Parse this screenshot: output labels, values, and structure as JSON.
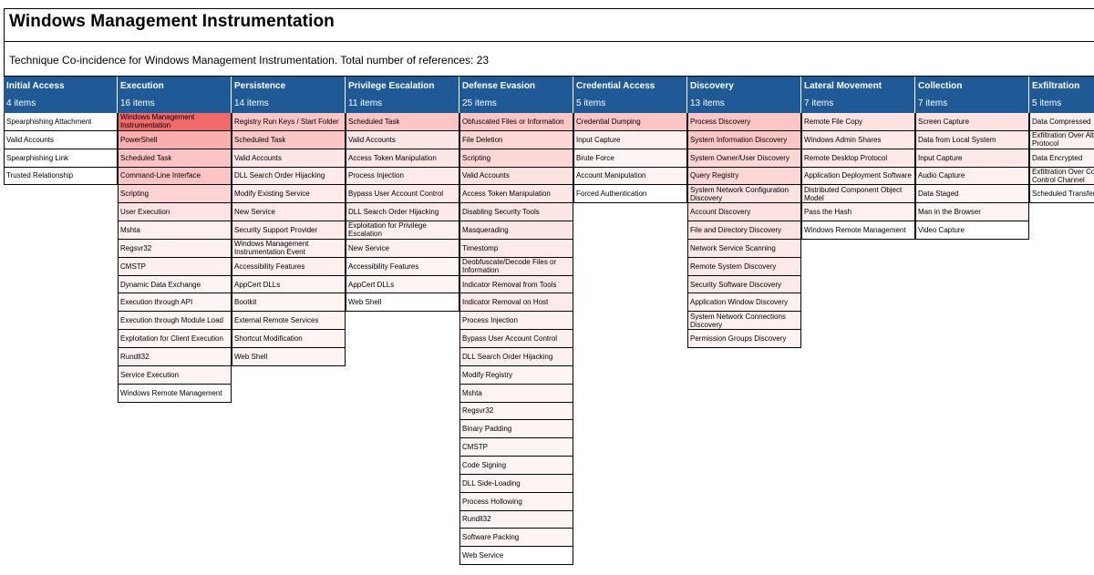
{
  "title": "Windows Management Instrumentation",
  "subtitle": "Technique Co-incidence for Windows Management Instrumentation. Total number of references: 23",
  "colors": {
    "header_bg": "#1f5a96",
    "header_text": "#ffffff"
  },
  "tactics": [
    {
      "name": "Initial Access",
      "count": "4 items",
      "techniques": [
        {
          "label": "Spearphishing Attachment",
          "color": "#ffffff"
        },
        {
          "label": "Valid Accounts",
          "color": "#ffffff"
        },
        {
          "label": "Spearphishing Link",
          "color": "#ffffff"
        },
        {
          "label": "Trusted Relationship",
          "color": "#ffffff"
        }
      ]
    },
    {
      "name": "Execution",
      "count": "16 items",
      "techniques": [
        {
          "label": "Windows Management Instrumentation",
          "color": "#f26b6b"
        },
        {
          "label": "PowerShell",
          "color": "#fbaeae"
        },
        {
          "label": "Scheduled Task",
          "color": "#fcc4c4"
        },
        {
          "label": "Command-Line Interface",
          "color": "#fcc4c4"
        },
        {
          "label": "Scripting",
          "color": "#fdd3d3"
        },
        {
          "label": "User Execution",
          "color": "#fee4e4"
        },
        {
          "label": "Mshta",
          "color": "#fff0f0"
        },
        {
          "label": "Regsvr32",
          "color": "#fff0f0"
        },
        {
          "label": "CMSTP",
          "color": "#fff0f0"
        },
        {
          "label": "Dynamic Data Exchange",
          "color": "#fff4f4"
        },
        {
          "label": "Execution through API",
          "color": "#fff4f4"
        },
        {
          "label": "Execution through Module Load",
          "color": "#fff4f4"
        },
        {
          "label": "Exploitation for Client Execution",
          "color": "#fff4f4"
        },
        {
          "label": "Rundll32",
          "color": "#fff4f4"
        },
        {
          "label": "Service Execution",
          "color": "#fff4f4"
        },
        {
          "label": "Windows Remote Management",
          "color": "#ffffff"
        }
      ]
    },
    {
      "name": "Persistence",
      "count": "14 items",
      "techniques": [
        {
          "label": "Registry Run Keys / Start Folder",
          "color": "#fcc6c6"
        },
        {
          "label": "Scheduled Task",
          "color": "#fcc6c6"
        },
        {
          "label": "Valid Accounts",
          "color": "#fde6e6"
        },
        {
          "label": "DLL Search Order Hijacking",
          "color": "#feeaea"
        },
        {
          "label": "Modify Existing Service",
          "color": "#feeaea"
        },
        {
          "label": "New Service",
          "color": "#feeaea"
        },
        {
          "label": "Security Support Provider",
          "color": "#feeaea"
        },
        {
          "label": "Windows Management Instrumentation Event Subscription",
          "color": "#fff0f0"
        },
        {
          "label": "Accessibility Features",
          "color": "#fff0f0"
        },
        {
          "label": "AppCert DLLs",
          "color": "#fff4f4"
        },
        {
          "label": "Bootkit",
          "color": "#fff4f4"
        },
        {
          "label": "External Remote Services",
          "color": "#fff4f4"
        },
        {
          "label": "Shortcut Modification",
          "color": "#fff4f4"
        },
        {
          "label": "Web Shell",
          "color": "#fff4f4"
        }
      ]
    },
    {
      "name": "Privilege Escalation",
      "count": "11 items",
      "techniques": [
        {
          "label": "Scheduled Task",
          "color": "#fcc6c6"
        },
        {
          "label": "Valid Accounts",
          "color": "#fde6e6"
        },
        {
          "label": "Access Token Manipulation",
          "color": "#fde6e6"
        },
        {
          "label": "Process Injection",
          "color": "#feeaea"
        },
        {
          "label": "Bypass User Account Control",
          "color": "#feeaea"
        },
        {
          "label": "DLL Search Order Hijacking",
          "color": "#feeaea"
        },
        {
          "label": "Exploitation for Privilege Escalation",
          "color": "#fff0f0"
        },
        {
          "label": "New Service",
          "color": "#fff0f0"
        },
        {
          "label": "Accessibility Features",
          "color": "#fff4f4"
        },
        {
          "label": "AppCert DLLs",
          "color": "#fff4f4"
        },
        {
          "label": "Web Shell",
          "color": "#ffffff"
        }
      ]
    },
    {
      "name": "Defense Evasion",
      "count": "25 items",
      "techniques": [
        {
          "label": "Obfuscated Files or Information",
          "color": "#fcc6c6"
        },
        {
          "label": "File Deletion",
          "color": "#fdd6d6"
        },
        {
          "label": "Scripting",
          "color": "#fdd6d6"
        },
        {
          "label": "Valid Accounts",
          "color": "#fde2e2"
        },
        {
          "label": "Access Token Manipulation",
          "color": "#fde6e6"
        },
        {
          "label": "Disabling Security Tools",
          "color": "#fde6e6"
        },
        {
          "label": "Masquerading",
          "color": "#fde6e6"
        },
        {
          "label": "Timestomp",
          "color": "#feeaea"
        },
        {
          "label": "Deobfuscate/Decode Files or Information",
          "color": "#feeaea"
        },
        {
          "label": "Indicator Removal from Tools",
          "color": "#feeaea"
        },
        {
          "label": "Indicator Removal on Host",
          "color": "#feeaea"
        },
        {
          "label": "Process Injection",
          "color": "#fff0f0"
        },
        {
          "label": "Bypass User Account Control",
          "color": "#fff0f0"
        },
        {
          "label": "DLL Search Order Hijacking",
          "color": "#fff0f0"
        },
        {
          "label": "Modify Registry",
          "color": "#fff4f4"
        },
        {
          "label": "Mshta",
          "color": "#fff4f4"
        },
        {
          "label": "Regsvr32",
          "color": "#fff4f4"
        },
        {
          "label": "Binary Padding",
          "color": "#fff4f4"
        },
        {
          "label": "CMSTP",
          "color": "#fff4f4"
        },
        {
          "label": "Code Signing",
          "color": "#fff4f4"
        },
        {
          "label": "DLL Side-Loading",
          "color": "#fff4f4"
        },
        {
          "label": "Process Hollowing",
          "color": "#fff4f4"
        },
        {
          "label": "Rundll32",
          "color": "#fff4f4"
        },
        {
          "label": "Software Packing",
          "color": "#fff4f4"
        },
        {
          "label": "Web Service",
          "color": "#ffffff"
        }
      ]
    },
    {
      "name": "Credential Access",
      "count": "5 items",
      "techniques": [
        {
          "label": "Credential Dumping",
          "color": "#fcc6c6"
        },
        {
          "label": "Input Capture",
          "color": "#fff0f0"
        },
        {
          "label": "Brute Force",
          "color": "#fff4f4"
        },
        {
          "label": "Account Manipulation",
          "color": "#fff4f4"
        },
        {
          "label": "Forced Authentication",
          "color": "#ffffff"
        }
      ]
    },
    {
      "name": "Discovery",
      "count": "13 items",
      "techniques": [
        {
          "label": "Process Discovery",
          "color": "#fcc6c6"
        },
        {
          "label": "System Information Discovery",
          "color": "#fcc6c6"
        },
        {
          "label": "System Owner/User Discovery",
          "color": "#fdd6d6"
        },
        {
          "label": "Query Registry",
          "color": "#fdd6d6"
        },
        {
          "label": "System Network Configuration Discovery",
          "color": "#fde2e2"
        },
        {
          "label": "Account Discovery",
          "color": "#fde2e2"
        },
        {
          "label": "File and Directory Discovery",
          "color": "#fde2e2"
        },
        {
          "label": "Network Service Scanning",
          "color": "#fee8e8"
        },
        {
          "label": "Remote System Discovery",
          "color": "#fee8e8"
        },
        {
          "label": "Security Software Discovery",
          "color": "#fee8e8"
        },
        {
          "label": "Application Window Discovery",
          "color": "#fff0f0"
        },
        {
          "label": "System Network Connections Discovery",
          "color": "#fff0f0"
        },
        {
          "label": "Permission Groups Discovery",
          "color": "#fff4f4"
        }
      ]
    },
    {
      "name": "Lateral Movement",
      "count": "7 items",
      "techniques": [
        {
          "label": "Remote File Copy",
          "color": "#fde2e2"
        },
        {
          "label": "Windows Admin Shares",
          "color": "#fee8e8"
        },
        {
          "label": "Remote Desktop Protocol",
          "color": "#fee8e8"
        },
        {
          "label": "Application Deployment Software",
          "color": "#fff0f0"
        },
        {
          "label": "Distributed Component Object Model",
          "color": "#fff0f0"
        },
        {
          "label": "Pass the Hash",
          "color": "#fff0f0"
        },
        {
          "label": "Windows Remote Management",
          "color": "#ffffff"
        }
      ]
    },
    {
      "name": "Collection",
      "count": "7 items",
      "techniques": [
        {
          "label": "Screen Capture",
          "color": "#fde2e2"
        },
        {
          "label": "Data from Local System",
          "color": "#fee8e8"
        },
        {
          "label": "Input Capture",
          "color": "#fee8e8"
        },
        {
          "label": "Audio Capture",
          "color": "#fff0f0"
        },
        {
          "label": "Data Staged",
          "color": "#fff4f4"
        },
        {
          "label": "Man in the Browser",
          "color": "#fff4f4"
        },
        {
          "label": "Video Capture",
          "color": "#ffffff"
        }
      ]
    },
    {
      "name": "Exfiltration",
      "count": "5 items",
      "techniques": [
        {
          "label": "Data Compressed",
          "color": "#fff0f0"
        },
        {
          "label": "Exfiltration Over Alternative Protocol",
          "color": "#fff0f0"
        },
        {
          "label": "Data Encrypted",
          "color": "#fff4f4"
        },
        {
          "label": "Exfiltration Over Command and Control Channel",
          "color": "#fff4f4"
        },
        {
          "label": "Scheduled Transfer",
          "color": "#ffffff"
        }
      ]
    }
  ]
}
